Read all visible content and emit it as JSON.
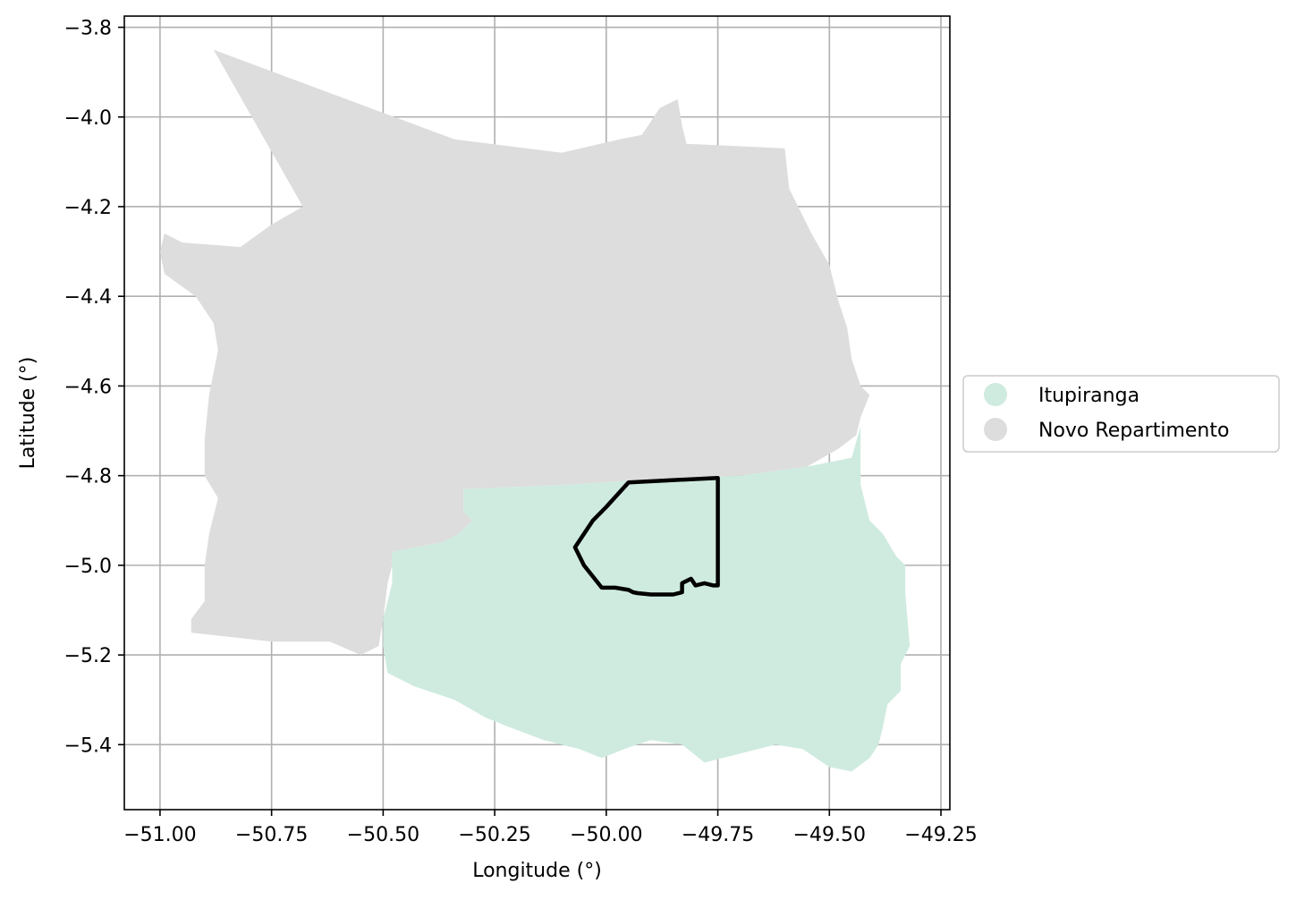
{
  "chart_data": {
    "type": "map",
    "xlabel": "Longitude (°)",
    "ylabel": "Latitude (°)",
    "xlim": [
      -51.08,
      -49.23
    ],
    "ylim": [
      -5.545,
      -3.775
    ],
    "grid": true,
    "legend_placement": "right",
    "xticks": [
      -51.0,
      -50.75,
      -50.5,
      -50.25,
      -50.0,
      -49.75,
      -49.5,
      -49.25
    ],
    "yticks": [
      -3.8,
      -4.0,
      -4.2,
      -4.4,
      -4.6,
      -4.8,
      -5.0,
      -5.2,
      -5.4
    ],
    "xtick_labels": [
      "−51.00",
      "−50.75",
      "−50.50",
      "−50.25",
      "−50.00",
      "−49.75",
      "−49.50",
      "−49.25"
    ],
    "ytick_labels": [
      "−3.8",
      "−4.0",
      "−4.2",
      "−4.4",
      "−4.6",
      "−4.8",
      "−5.0",
      "−5.2",
      "−5.4"
    ],
    "legend": [
      {
        "label": "Itupiranga",
        "color": "#cfebdf"
      },
      {
        "label": "Novo Repartimento",
        "color": "#dddddd"
      }
    ],
    "regions": [
      {
        "name": "Novo Repartimento",
        "color": "#dddddd",
        "polygon": [
          [
            -50.88,
            -3.85
          ],
          [
            -50.34,
            -4.05
          ],
          [
            -50.1,
            -4.08
          ],
          [
            -49.97,
            -4.05
          ],
          [
            -49.92,
            -4.04
          ],
          [
            -49.88,
            -3.98
          ],
          [
            -49.84,
            -3.96
          ],
          [
            -49.83,
            -4.02
          ],
          [
            -49.82,
            -4.06
          ],
          [
            -49.6,
            -4.07
          ],
          [
            -49.59,
            -4.16
          ],
          [
            -49.54,
            -4.26
          ],
          [
            -49.5,
            -4.33
          ],
          [
            -49.48,
            -4.41
          ],
          [
            -49.46,
            -4.47
          ],
          [
            -49.45,
            -4.54
          ],
          [
            -49.43,
            -4.6
          ],
          [
            -49.41,
            -4.62
          ],
          [
            -49.43,
            -4.67
          ],
          [
            -49.44,
            -4.71
          ],
          [
            -49.48,
            -4.74
          ],
          [
            -49.55,
            -4.78
          ],
          [
            -49.7,
            -4.8
          ],
          [
            -49.94,
            -4.81
          ],
          [
            -50.08,
            -4.82
          ],
          [
            -50.32,
            -4.83
          ],
          [
            -50.32,
            -4.88
          ],
          [
            -50.3,
            -4.9
          ],
          [
            -50.33,
            -4.93
          ],
          [
            -50.37,
            -4.95
          ],
          [
            -50.43,
            -4.96
          ],
          [
            -50.48,
            -4.97
          ],
          [
            -50.48,
            -5.0
          ],
          [
            -50.49,
            -5.04
          ],
          [
            -50.5,
            -5.12
          ],
          [
            -50.51,
            -5.18
          ],
          [
            -50.55,
            -5.2
          ],
          [
            -50.62,
            -5.17
          ],
          [
            -50.68,
            -5.17
          ],
          [
            -50.75,
            -5.17
          ],
          [
            -50.84,
            -5.16
          ],
          [
            -50.93,
            -5.15
          ],
          [
            -50.93,
            -5.12
          ],
          [
            -50.9,
            -5.08
          ],
          [
            -50.9,
            -5.0
          ],
          [
            -50.89,
            -4.93
          ],
          [
            -50.87,
            -4.85
          ],
          [
            -50.9,
            -4.8
          ],
          [
            -50.9,
            -4.72
          ],
          [
            -50.89,
            -4.62
          ],
          [
            -50.87,
            -4.52
          ],
          [
            -50.88,
            -4.46
          ],
          [
            -50.92,
            -4.4
          ],
          [
            -50.99,
            -4.35
          ],
          [
            -51.0,
            -4.3
          ],
          [
            -50.99,
            -4.26
          ],
          [
            -50.95,
            -4.28
          ],
          [
            -50.82,
            -4.29
          ],
          [
            -50.75,
            -4.24
          ],
          [
            -50.68,
            -4.2
          ]
        ]
      },
      {
        "name": "Itupiranga",
        "color": "#cfebdf",
        "polygon": [
          [
            -50.32,
            -4.83
          ],
          [
            -50.08,
            -4.82
          ],
          [
            -49.94,
            -4.81
          ],
          [
            -49.7,
            -4.8
          ],
          [
            -49.55,
            -4.78
          ],
          [
            -49.45,
            -4.76
          ],
          [
            -49.43,
            -4.69
          ],
          [
            -49.43,
            -4.82
          ],
          [
            -49.41,
            -4.9
          ],
          [
            -49.38,
            -4.93
          ],
          [
            -49.35,
            -4.98
          ],
          [
            -49.33,
            -5.0
          ],
          [
            -49.33,
            -5.06
          ],
          [
            -49.32,
            -5.18
          ],
          [
            -49.34,
            -5.22
          ],
          [
            -49.34,
            -5.28
          ],
          [
            -49.37,
            -5.31
          ],
          [
            -49.38,
            -5.36
          ],
          [
            -49.39,
            -5.4
          ],
          [
            -49.41,
            -5.43
          ],
          [
            -49.45,
            -5.46
          ],
          [
            -49.5,
            -5.45
          ],
          [
            -49.56,
            -5.41
          ],
          [
            -49.62,
            -5.4
          ],
          [
            -49.7,
            -5.42
          ],
          [
            -49.78,
            -5.44
          ],
          [
            -49.83,
            -5.4
          ],
          [
            -49.9,
            -5.39
          ],
          [
            -49.96,
            -5.41
          ],
          [
            -50.01,
            -5.43
          ],
          [
            -50.06,
            -5.41
          ],
          [
            -50.14,
            -5.39
          ],
          [
            -50.22,
            -5.36
          ],
          [
            -50.27,
            -5.34
          ],
          [
            -50.34,
            -5.3
          ],
          [
            -50.43,
            -5.27
          ],
          [
            -50.49,
            -5.24
          ],
          [
            -50.5,
            -5.18
          ],
          [
            -50.5,
            -5.12
          ],
          [
            -50.48,
            -5.04
          ],
          [
            -50.48,
            -4.97
          ],
          [
            -50.43,
            -4.96
          ],
          [
            -50.37,
            -4.95
          ],
          [
            -50.33,
            -4.93
          ],
          [
            -50.3,
            -4.9
          ],
          [
            -50.32,
            -4.88
          ]
        ]
      }
    ],
    "outline": [
      [
        -49.75,
        -4.805
      ],
      [
        -49.95,
        -4.815
      ],
      [
        -50.0,
        -4.87
      ],
      [
        -50.03,
        -4.9
      ],
      [
        -50.07,
        -4.96
      ],
      [
        -50.05,
        -5.0
      ],
      [
        -50.01,
        -5.05
      ],
      [
        -49.98,
        -5.05
      ],
      [
        -49.95,
        -5.055
      ],
      [
        -49.94,
        -5.06
      ],
      [
        -49.93,
        -5.062
      ],
      [
        -49.9,
        -5.065
      ],
      [
        -49.87,
        -5.065
      ],
      [
        -49.85,
        -5.065
      ],
      [
        -49.83,
        -5.06
      ],
      [
        -49.83,
        -5.04
      ],
      [
        -49.82,
        -5.035
      ],
      [
        -49.81,
        -5.03
      ],
      [
        -49.8,
        -5.045
      ],
      [
        -49.78,
        -5.04
      ],
      [
        -49.76,
        -5.045
      ],
      [
        -49.75,
        -5.045
      ]
    ]
  }
}
